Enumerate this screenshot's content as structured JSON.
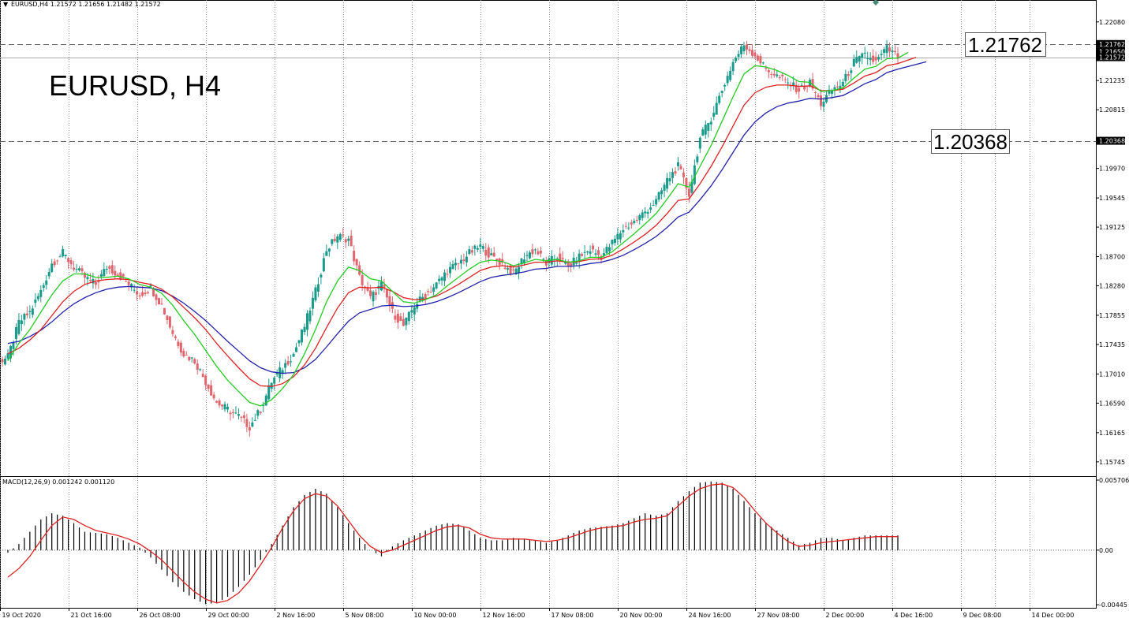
{
  "header": {
    "symbol_line": "EURUSD,H4  1.21572 1.21656 1.21482 1.21572"
  },
  "title": "EURUSD, H4",
  "macd_header": "MACD(12,26,9) 0.001242 0.001120",
  "colors": {
    "bull": "#1a9a8a",
    "bear": "#e0666e",
    "ma_fast": "#22cc22",
    "ma_mid": "#dd2222",
    "ma_slow": "#2222aa",
    "macd_signal": "#dd2222",
    "grid": "#888888"
  },
  "chart_data": [
    {
      "type": "candlestick",
      "title": "EURUSD, H4",
      "ylim": [
        1.1555,
        1.2235
      ],
      "y_ticks": [
        "1.22080",
        "1.21655",
        "1.21235",
        "1.20815",
        "1.20390",
        "1.19970",
        "1.19545",
        "1.19125",
        "1.18700",
        "1.18280",
        "1.17855",
        "1.17435",
        "1.17010",
        "1.16590",
        "1.16165",
        "1.15745"
      ],
      "y_tick_values": [
        1.2208,
        1.21655,
        1.21235,
        1.20815,
        1.2039,
        1.1997,
        1.19545,
        1.19125,
        1.187,
        1.1828,
        1.17855,
        1.17435,
        1.1701,
        1.1659,
        1.16165,
        1.15745
      ],
      "x_ticks": [
        "19 Oct 2020",
        "21 Oct 16:00",
        "26 Oct 08:00",
        "29 Oct 00:00",
        "2 Nov 16:00",
        "5 Nov 08:00",
        "10 Nov 00:00",
        "12 Nov 16:00",
        "17 Nov 08:00",
        "20 Nov 00:00",
        "24 Nov 16:00",
        "27 Nov 08:00",
        "2 Dec 00:00",
        "4 Dec 16:00",
        "9 Dec 08:00",
        "14 Dec 00:00"
      ],
      "key_levels": [
        {
          "label": "1.21762",
          "axis_label": "1.21762",
          "value": 1.21762
        },
        {
          "label": "1.20368",
          "axis_label": "1.20368",
          "value": 1.20368
        }
      ],
      "current_price": {
        "value": 1.21572,
        "axis_label": "1.21572"
      },
      "overlay_price": {
        "value": 1.2165,
        "axis_label": "1.21650"
      },
      "closes": [
        1.1725,
        1.1775,
        1.179,
        1.182,
        1.186,
        1.1875,
        1.1855,
        1.184,
        1.183,
        1.1855,
        1.1845,
        1.183,
        1.1815,
        1.1825,
        1.18,
        1.176,
        1.173,
        1.172,
        1.169,
        1.166,
        1.165,
        1.164,
        1.1625,
        1.165,
        1.169,
        1.171,
        1.173,
        1.177,
        1.182,
        1.188,
        1.19,
        1.1895,
        1.184,
        1.181,
        1.183,
        1.179,
        1.177,
        1.18,
        1.1815,
        1.183,
        1.185,
        1.186,
        1.1875,
        1.1885,
        1.187,
        1.186,
        1.1845,
        1.187,
        1.188,
        1.186,
        1.187,
        1.1855,
        1.187,
        1.188,
        1.187,
        1.189,
        1.191,
        1.192,
        1.1935,
        1.195,
        1.198,
        1.2,
        1.196,
        1.204,
        1.207,
        1.211,
        1.215,
        1.2175,
        1.216,
        1.214,
        1.213,
        1.212,
        1.211,
        1.212,
        1.209,
        1.211,
        1.212,
        1.215,
        1.216,
        1.215,
        1.217,
        1.2157
      ],
      "ma_fast": [
        1.172,
        1.1745,
        1.1765,
        1.179,
        1.1815,
        1.1835,
        1.1845,
        1.1845,
        1.184,
        1.184,
        1.1842,
        1.1838,
        1.183,
        1.1826,
        1.1817,
        1.18,
        1.1778,
        1.1758,
        1.1735,
        1.1712,
        1.1692,
        1.1676,
        1.166,
        1.1655,
        1.1664,
        1.168,
        1.17,
        1.173,
        1.1765,
        1.1805,
        1.1835,
        1.1855,
        1.185,
        1.1838,
        1.1835,
        1.182,
        1.1805,
        1.1803,
        1.1808,
        1.1815,
        1.1828,
        1.184,
        1.1852,
        1.1862,
        1.1865,
        1.1863,
        1.1857,
        1.1861,
        1.1866,
        1.1864,
        1.1866,
        1.1862,
        1.1864,
        1.1869,
        1.1869,
        1.1877,
        1.189,
        1.1903,
        1.1917,
        1.1932,
        1.1953,
        1.1975,
        1.197,
        1.2,
        1.203,
        1.2065,
        1.21,
        1.2133,
        1.2145,
        1.2143,
        1.2138,
        1.2131,
        1.2122,
        1.2121,
        1.2108,
        1.2109,
        1.2113,
        1.2127,
        1.214,
        1.2144,
        1.2155,
        1.2156
      ],
      "ma_mid": [
        1.173,
        1.1738,
        1.175,
        1.1765,
        1.1785,
        1.1805,
        1.182,
        1.183,
        1.1835,
        1.1837,
        1.1838,
        1.1837,
        1.1833,
        1.183,
        1.1823,
        1.1812,
        1.1797,
        1.1782,
        1.1765,
        1.1745,
        1.1727,
        1.171,
        1.1694,
        1.1684,
        1.1683,
        1.1687,
        1.1697,
        1.1714,
        1.1738,
        1.1768,
        1.1796,
        1.1818,
        1.1826,
        1.1825,
        1.1826,
        1.182,
        1.1811,
        1.1808,
        1.1809,
        1.1813,
        1.1821,
        1.183,
        1.184,
        1.185,
        1.1855,
        1.1857,
        1.1855,
        1.1858,
        1.1862,
        1.1862,
        1.1864,
        1.1862,
        1.1863,
        1.1866,
        1.1867,
        1.1872,
        1.1881,
        1.1891,
        1.1902,
        1.1915,
        1.1932,
        1.1951,
        1.1953,
        1.1975,
        1.2,
        1.2028,
        1.2058,
        1.2088,
        1.2106,
        1.2114,
        1.2117,
        1.2117,
        1.2115,
        1.2116,
        1.2109,
        1.2109,
        1.2111,
        1.212,
        1.213,
        1.2135,
        1.2145,
        1.2148
      ],
      "ma_slow": [
        1.1745,
        1.1748,
        1.1755,
        1.1764,
        1.1776,
        1.179,
        1.1802,
        1.1811,
        1.1818,
        1.1823,
        1.1826,
        1.1827,
        1.1826,
        1.1825,
        1.1821,
        1.1813,
        1.1803,
        1.1791,
        1.1778,
        1.1763,
        1.1748,
        1.1734,
        1.172,
        1.171,
        1.1704,
        1.1702,
        1.1703,
        1.171,
        1.1722,
        1.174,
        1.1759,
        1.1777,
        1.1789,
        1.1794,
        1.1799,
        1.18,
        1.1798,
        1.1799,
        1.1801,
        1.1805,
        1.1811,
        1.1818,
        1.1826,
        1.1834,
        1.184,
        1.1843,
        1.1845,
        1.1848,
        1.1852,
        1.1853,
        1.1856,
        1.1856,
        1.1857,
        1.186,
        1.1862,
        1.1866,
        1.1872,
        1.188,
        1.1889,
        1.1899,
        1.1912,
        1.1927,
        1.1934,
        1.1952,
        1.1972,
        1.1995,
        1.202,
        1.2045,
        1.2064,
        1.2077,
        1.2086,
        1.2091,
        1.2094,
        1.2098,
        1.2097,
        1.2099,
        1.2102,
        1.211,
        1.2119,
        1.2125,
        1.2135,
        1.214
      ]
    },
    {
      "type": "bar",
      "title": "MACD(12,26,9) 0.001242 0.001120",
      "ylim": [
        -0.0047,
        0.0059
      ],
      "y_ticks": [
        "0.005706",
        "0.00",
        "-0.00445"
      ],
      "y_tick_values": [
        0.005706,
        0.0,
        -0.00445
      ],
      "histogram": [
        -0.0002,
        0.0005,
        0.0015,
        0.0025,
        0.003,
        0.0028,
        0.0022,
        0.0015,
        0.0014,
        0.0013,
        0.001,
        0.0006,
        0.0002,
        -0.0006,
        -0.0016,
        -0.0026,
        -0.0034,
        -0.004,
        -0.0044,
        -0.0043,
        -0.0038,
        -0.003,
        -0.002,
        -0.0008,
        0.0005,
        0.002,
        0.0035,
        0.0045,
        0.005,
        0.0046,
        0.0035,
        0.0022,
        0.001,
        0.0,
        -0.0005,
        0.0003,
        0.0008,
        0.0012,
        0.0016,
        0.002,
        0.0022,
        0.0021,
        0.0016,
        0.001,
        0.0008,
        0.0008,
        0.001,
        0.0009,
        0.0008,
        0.0006,
        0.0008,
        0.0012,
        0.0016,
        0.0018,
        0.0019,
        0.002,
        0.0022,
        0.0026,
        0.003,
        0.0028,
        0.003,
        0.004,
        0.0048,
        0.0055,
        0.0056,
        0.0055,
        0.005,
        0.004,
        0.003,
        0.0022,
        0.0016,
        0.001,
        0.0004,
        0.0006,
        0.001,
        0.001,
        0.0008,
        0.001,
        0.0012,
        0.0012,
        0.0012,
        0.0012
      ],
      "signal": [
        -0.0022,
        -0.0015,
        -0.0005,
        0.0008,
        0.002,
        0.0027,
        0.0025,
        0.002,
        0.0016,
        0.0014,
        0.0012,
        0.0009,
        0.0005,
        -0.0001,
        -0.0008,
        -0.0017,
        -0.0026,
        -0.0034,
        -0.004,
        -0.0043,
        -0.0041,
        -0.0035,
        -0.0025,
        -0.0012,
        0.0002,
        0.0018,
        0.0032,
        0.0042,
        0.0046,
        0.0044,
        0.0036,
        0.0024,
        0.0012,
        0.0003,
        -0.0002,
        0.0,
        0.0004,
        0.0008,
        0.0012,
        0.0016,
        0.0019,
        0.002,
        0.0018,
        0.0013,
        0.001,
        0.0009,
        0.0009,
        0.0009,
        0.0008,
        0.0007,
        0.0008,
        0.001,
        0.0013,
        0.0016,
        0.0018,
        0.0019,
        0.002,
        0.0023,
        0.0025,
        0.0026,
        0.0028,
        0.0036,
        0.0044,
        0.005,
        0.0053,
        0.0054,
        0.0051,
        0.0043,
        0.0032,
        0.0022,
        0.0014,
        0.0007,
        0.0003,
        0.0004,
        0.0006,
        0.0007,
        0.0008,
        0.0009,
        0.001,
        0.0011,
        0.0011,
        0.0011
      ]
    }
  ]
}
